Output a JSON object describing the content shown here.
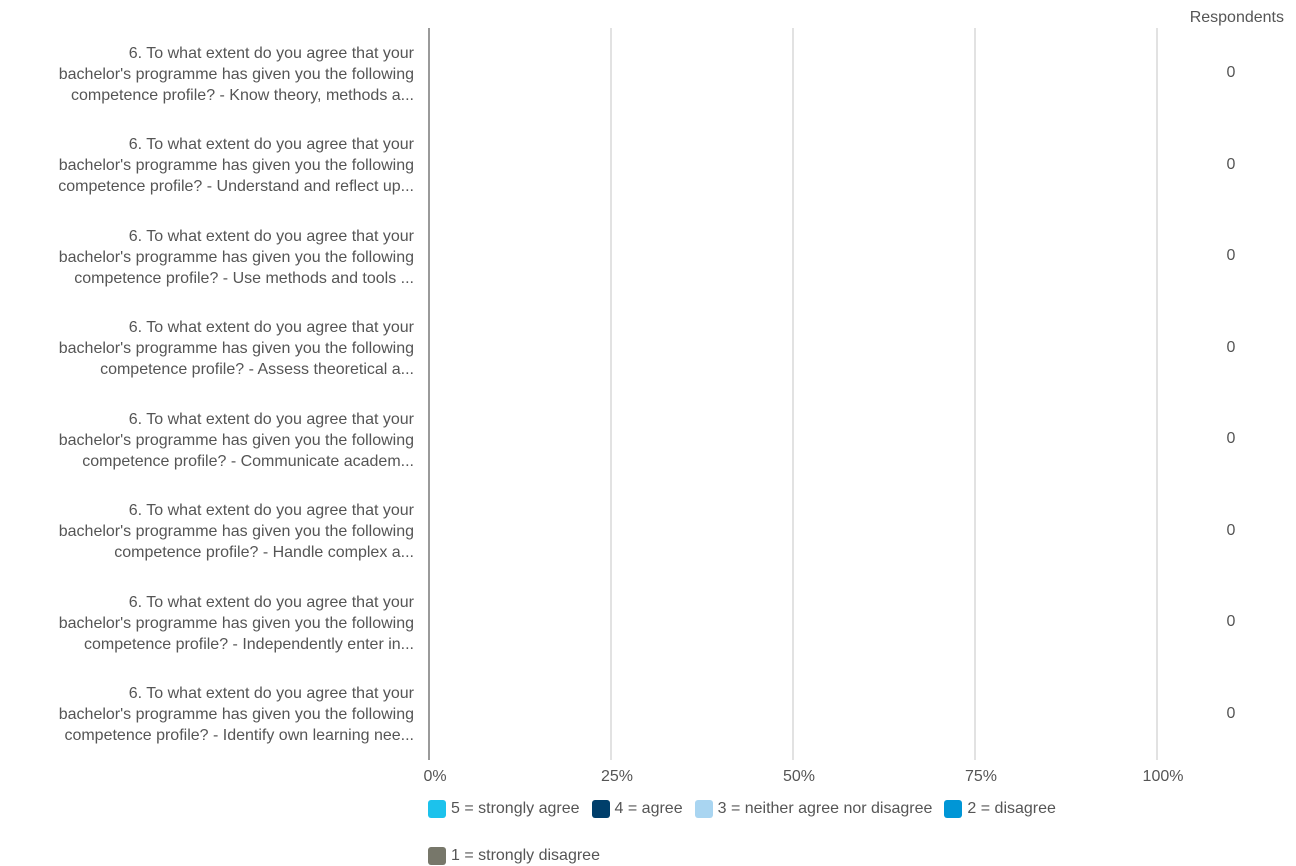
{
  "chart_data": {
    "type": "bar",
    "stacked": true,
    "orientation": "horizontal",
    "percent_axis": true,
    "xlim": [
      0,
      100
    ],
    "x_ticks": [
      "0%",
      "25%",
      "50%",
      "75%",
      "100%"
    ],
    "respondents_header": "Respondents",
    "categories": [
      [
        "6. To what extent do you agree that your",
        "bachelor's programme has given you the following",
        "competence profile? - Know theory, methods a..."
      ],
      [
        "6. To what extent do you agree that your",
        "bachelor's programme has given you the following",
        "competence profile? - Understand and reflect up..."
      ],
      [
        "6. To what extent do you agree that your",
        "bachelor's programme has given you the following",
        "competence profile? - Use methods and tools ..."
      ],
      [
        "6. To what extent do you agree that your",
        "bachelor's programme has given you the following",
        "competence profile? - Assess theoretical a..."
      ],
      [
        "6. To what extent do you agree that your",
        "bachelor's programme has given you the following",
        "competence profile? - Communicate  academ..."
      ],
      [
        "6. To what extent do you agree that your",
        "bachelor's programme has given you the following",
        "competence profile? - Handle complex a..."
      ],
      [
        "6. To what extent do you agree that your",
        "bachelor's programme has given you the following",
        "competence profile? - Independently enter in..."
      ],
      [
        "6. To what extent do you agree that your",
        "bachelor's programme has given you the following",
        "competence profile? - Identify own learning nee..."
      ]
    ],
    "respondents": [
      "0",
      "0",
      "0",
      "0",
      "0",
      "0",
      "0",
      "0"
    ],
    "series": [
      {
        "name": "5 = strongly agree",
        "color": "#1cc2ec",
        "values": [
          0,
          0,
          0,
          0,
          0,
          0,
          0,
          0
        ]
      },
      {
        "name": "4 = agree",
        "color": "#003f6b",
        "values": [
          0,
          0,
          0,
          0,
          0,
          0,
          0,
          0
        ]
      },
      {
        "name": "3 = neither agree nor disagree",
        "color": "#a9d5f1",
        "values": [
          0,
          0,
          0,
          0,
          0,
          0,
          0,
          0
        ]
      },
      {
        "name": "2 = disagree",
        "color": "#0096d6",
        "values": [
          0,
          0,
          0,
          0,
          0,
          0,
          0,
          0
        ]
      },
      {
        "name": "1 = strongly disagree",
        "color": "#77776a",
        "values": [
          0,
          0,
          0,
          0,
          0,
          0,
          0,
          0
        ]
      }
    ],
    "grid": true,
    "legend_position": "bottom"
  }
}
